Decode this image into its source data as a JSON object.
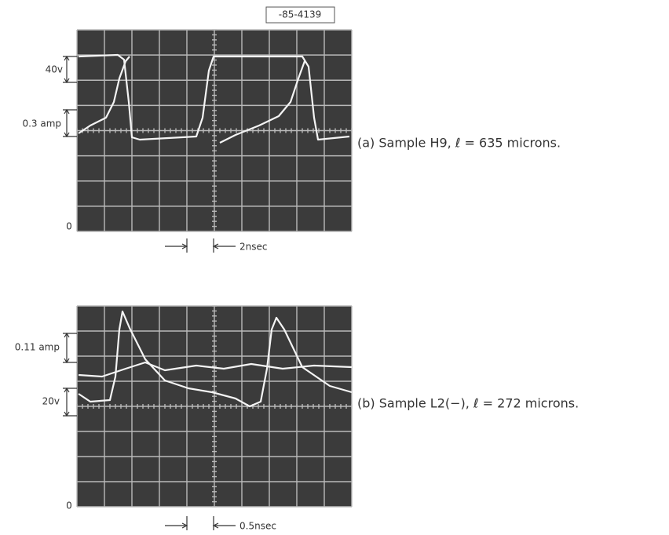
{
  "stamp": "-85-4139",
  "panels": [
    {
      "labels": [
        "40v",
        "0.3 amp"
      ],
      "zero": "0",
      "time": "2nsec",
      "caption": "(a) Sample H9,  ℓ = 635 microns."
    },
    {
      "labels": [
        "0.11 amp",
        "20v"
      ],
      "zero": "0",
      "time": "0.5nsec",
      "caption": "(b) Sample L2(−),  ℓ = 272 microns."
    }
  ]
}
